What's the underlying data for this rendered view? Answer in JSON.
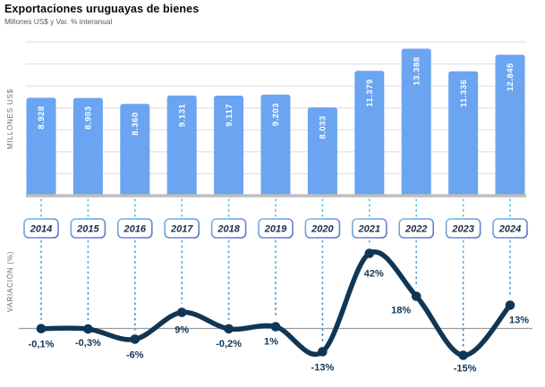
{
  "header": {
    "title": "Exportaciones uruguayas de bienes",
    "subtitle": "Millones US$ y Var. % interanual"
  },
  "chart_data": {
    "type": "bar+line",
    "categories": [
      "2014",
      "2015",
      "2016",
      "2017",
      "2018",
      "2019",
      "2020",
      "2021",
      "2022",
      "2023",
      "2024"
    ],
    "series": [
      {
        "name": "Millones US$",
        "type": "bar",
        "values": [
          8928,
          8903,
          8360,
          9131,
          9117,
          9203,
          8033,
          11379,
          13388,
          11336,
          12845
        ],
        "labels": [
          "8.928",
          "8.903",
          "8.360",
          "9.131",
          "9.117",
          "9.203",
          "8.033",
          "11.379",
          "13.388",
          "11.336",
          "12.845"
        ],
        "color": "#6BA4F1",
        "value_label_color": "#FFFFFF",
        "axis_label": "MILLONES US$",
        "ylim": [
          0,
          14000
        ],
        "grid_step": 2000,
        "grid": true
      },
      {
        "name": "Var. % interanual",
        "type": "line",
        "values": [
          -0.1,
          -0.3,
          -6,
          9,
          -0.2,
          1,
          -13,
          42,
          18,
          -15,
          13
        ],
        "labels": [
          "-0,1%",
          "-0,3%",
          "-6%",
          "9%",
          "-0,2%",
          "1%",
          "-13%",
          "42%",
          "18%",
          "-15%",
          "13%"
        ],
        "color": "#103655",
        "axis_label": "VARIACIÓN (%)",
        "zero_line": true
      }
    ],
    "legend": "none",
    "colors": {
      "bar_fill": "#6BA4F1",
      "line_stroke": "#103655",
      "dash_connector_top": "#5FC6E2",
      "dash_connector_bottom": "#3B77C6",
      "year_badge_border_start": "#74B9E8",
      "year_badge_border_end": "#5D6CC9",
      "year_badge_text": "#1B2A4A",
      "gridline": "#DCDCDC",
      "baseline": "#BDBDBD",
      "zero_line": "#9B9B9B",
      "axis_text": "#6E6E6E"
    }
  }
}
